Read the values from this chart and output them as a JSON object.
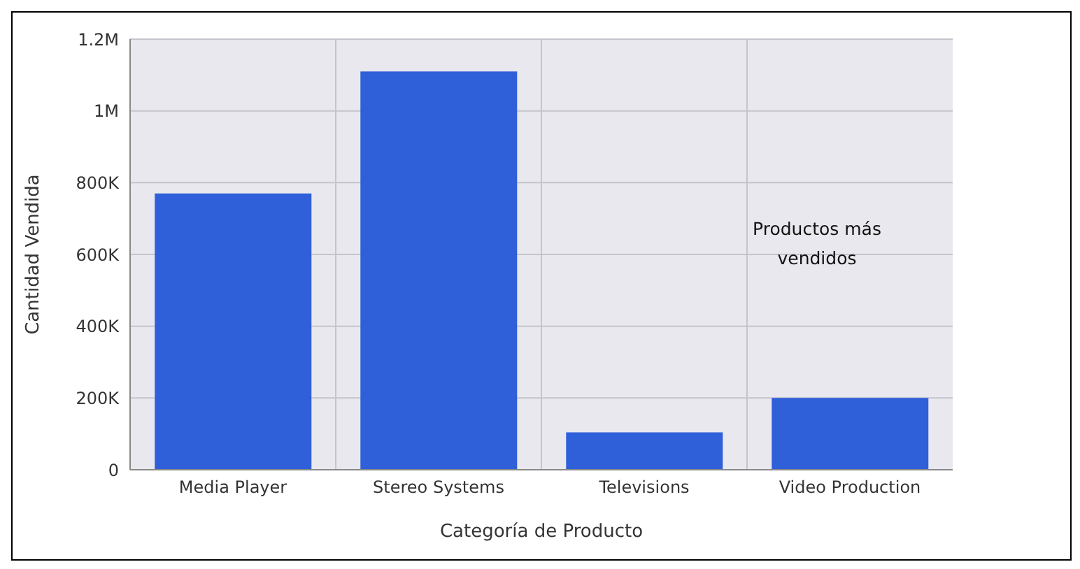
{
  "chart_data": {
    "type": "bar",
    "xlabel": "Categoría de Producto",
    "ylabel": "Cantidad Vendida",
    "annotations": [
      "Productos más vendidos"
    ],
    "categories": [
      "Media Player",
      "Stereo Systems",
      "Televisions",
      "Video Production"
    ],
    "values": [
      770000,
      1110000,
      104000,
      200000
    ],
    "color": "#2f5fd9",
    "ylim": [
      0,
      1200000
    ],
    "yticks": [
      0,
      {
        "value": 200000,
        "label": "200K"
      },
      {
        "value": 400000,
        "label": "400K"
      },
      {
        "value": 600000,
        "label": "600K"
      },
      {
        "value": 800000,
        "label": "800K"
      },
      {
        "value": 1000000,
        "label": "1M"
      },
      {
        "value": 1200000,
        "label": "1.2M"
      }
    ],
    "grid": true,
    "legend": false
  }
}
